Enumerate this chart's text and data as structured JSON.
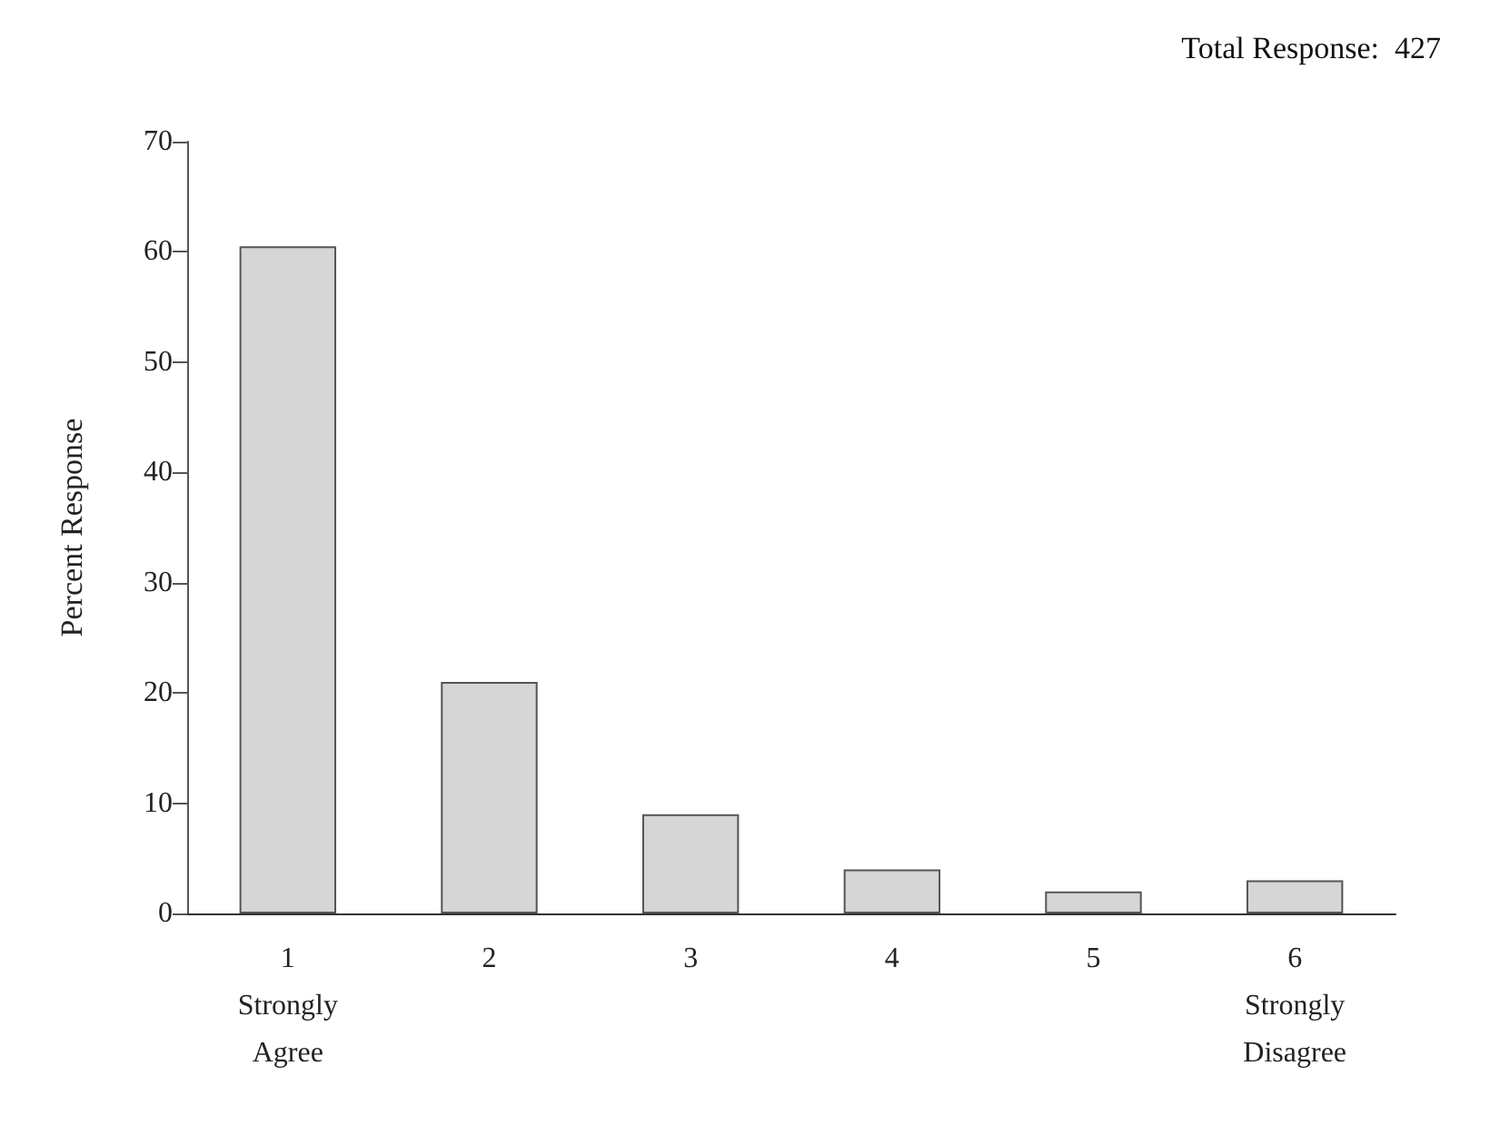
{
  "chart_data": {
    "type": "bar",
    "title": "Total Response:  427",
    "ylabel": "Percent Response",
    "categories": [
      "1\nStrongly\nAgree",
      "2",
      "3",
      "4",
      "5",
      "6\nStrongly\nDisagree"
    ],
    "values": [
      60.5,
      21,
      9,
      4,
      2,
      3
    ],
    "color": "#d6d6d6",
    "ylim": [
      0,
      70
    ],
    "yticks": [
      0,
      10,
      20,
      30,
      40,
      50,
      60,
      70
    ]
  }
}
